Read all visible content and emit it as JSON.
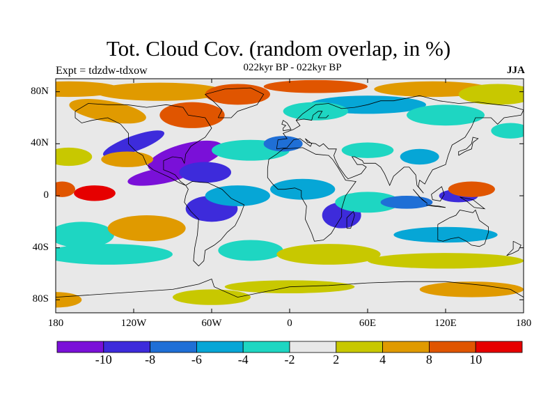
{
  "title": "Tot. Cloud Cov. (random overlap, in %)",
  "subtitle": "022kyr BP - 022kyr BP",
  "experiment": "Expt = tdzdw-tdxow",
  "season": "JJA",
  "lat_labels": [
    "80N",
    "40N",
    "0",
    "40S",
    "80S"
  ],
  "lat_values": [
    80,
    40,
    0,
    -40,
    -80
  ],
  "lon_labels": [
    "180",
    "120W",
    "60W",
    "0",
    "60E",
    "120E",
    "180"
  ],
  "lon_values": [
    -180,
    -120,
    -60,
    0,
    60,
    120,
    180
  ],
  "colorbar": {
    "colors": [
      "#7a10d8",
      "#3d2bdb",
      "#1f6fd6",
      "#06a6d6",
      "#1ed6c2",
      "#e8e8e8",
      "#c8c800",
      "#e09a00",
      "#e05500",
      "#e60000"
    ],
    "labels": [
      "-10",
      "-8",
      "-6",
      "-4",
      "-2",
      "2",
      "4",
      "8",
      "10"
    ]
  },
  "map": {
    "lon_range": [
      -180,
      180
    ],
    "lat_range": [
      -90,
      90
    ],
    "background_color": "#e8e8e8",
    "coastline_color": "#000000"
  }
}
